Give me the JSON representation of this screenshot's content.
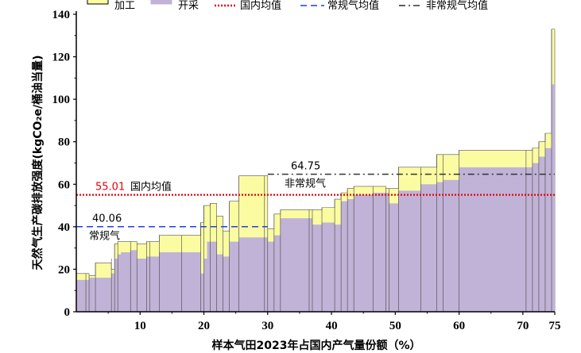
{
  "chart_data": {
    "type": "area",
    "title": "",
    "xlabel": "样本气田2023年占国内产气量份额（%）",
    "ylabel": "天然气生产碳排放强度(kgCO₂e/桶油当量)",
    "xlim": [
      0,
      75
    ],
    "ylim": [
      0,
      140
    ],
    "xticks": [
      10,
      20,
      30,
      40,
      50,
      60,
      70,
      75
    ],
    "yticks": [
      0,
      20,
      40,
      60,
      80,
      100,
      120,
      140
    ],
    "grid": false,
    "legend_position": "top",
    "colors": {
      "processing": "#fbfba2",
      "extraction": "#c1b3d7",
      "national": "#e8000b",
      "conventional": "#1f3fe6",
      "unconventional": "#333333"
    },
    "legend": {
      "processing": "加工",
      "extraction": "开采",
      "national": "国内均值",
      "conventional": "常规气均值",
      "unconventional": "非常规气均值"
    },
    "series": [
      {
        "name": "开采",
        "points": [
          [
            0,
            15
          ],
          [
            2,
            16
          ],
          [
            3,
            16
          ],
          [
            5.5,
            18
          ],
          [
            6,
            25
          ],
          [
            6.5,
            27
          ],
          [
            7,
            28
          ],
          [
            8.5,
            29
          ],
          [
            9.5,
            25
          ],
          [
            11,
            26
          ],
          [
            11.5,
            26
          ],
          [
            13,
            28
          ],
          [
            16.5,
            28
          ],
          [
            18.5,
            28
          ],
          [
            19.5,
            18
          ],
          [
            20,
            25
          ],
          [
            20.5,
            33
          ],
          [
            22,
            27
          ],
          [
            23,
            26
          ],
          [
            24,
            33
          ],
          [
            25.5,
            35
          ],
          [
            29.5,
            35
          ],
          [
            30,
            33
          ],
          [
            31,
            36
          ],
          [
            32,
            44
          ],
          [
            36.5,
            44
          ],
          [
            37,
            41
          ],
          [
            38.5,
            42
          ],
          [
            40.5,
            41
          ],
          [
            41.5,
            52
          ],
          [
            42.5,
            53
          ],
          [
            43.5,
            55
          ],
          [
            46.5,
            56
          ],
          [
            48.5,
            56
          ],
          [
            49,
            51
          ],
          [
            50.5,
            57
          ],
          [
            54,
            60
          ],
          [
            56.5,
            61
          ],
          [
            57.5,
            62
          ],
          [
            60,
            68
          ],
          [
            70.5,
            68
          ],
          [
            71.5,
            70
          ],
          [
            72.5,
            73
          ],
          [
            73.5,
            77
          ],
          [
            74.5,
            107
          ]
        ],
        "end_x": 75
      },
      {
        "name": "加工",
        "points": [
          [
            0,
            18
          ],
          [
            1.5,
            18
          ],
          [
            2,
            17
          ],
          [
            3,
            23
          ],
          [
            5.5,
            20
          ],
          [
            6,
            32
          ],
          [
            6.5,
            33
          ],
          [
            8.5,
            33
          ],
          [
            9.5,
            32
          ],
          [
            11,
            33
          ],
          [
            11.5,
            33
          ],
          [
            13,
            36
          ],
          [
            16.5,
            36
          ],
          [
            19.5,
            42
          ],
          [
            20,
            50
          ],
          [
            21,
            51
          ],
          [
            22,
            45
          ],
          [
            23,
            38
          ],
          [
            24,
            52
          ],
          [
            25.5,
            64
          ],
          [
            29.5,
            64
          ],
          [
            30,
            39
          ],
          [
            31,
            46
          ],
          [
            32,
            48
          ],
          [
            36.5,
            48
          ],
          [
            37,
            48
          ],
          [
            38.5,
            49
          ],
          [
            40.5,
            53
          ],
          [
            41.5,
            56
          ],
          [
            42.5,
            58
          ],
          [
            43.5,
            59
          ],
          [
            46.5,
            59
          ],
          [
            48.5,
            58
          ],
          [
            49,
            58
          ],
          [
            50.5,
            68
          ],
          [
            54,
            68
          ],
          [
            56.5,
            74
          ],
          [
            57.5,
            74
          ],
          [
            60,
            76
          ],
          [
            70.5,
            76
          ],
          [
            71.5,
            77
          ],
          [
            72.5,
            80
          ],
          [
            73.5,
            84
          ],
          [
            74.5,
            133
          ]
        ],
        "end_x": 75
      }
    ],
    "reference_lines": [
      {
        "name": "国内均值",
        "value": 55.01,
        "label": "55.01",
        "text": "国内均值",
        "x_start": 0,
        "x_end": 75
      },
      {
        "name": "常规气均值",
        "value": 40.06,
        "label": "40.06",
        "text": "常规气",
        "x_start": 0,
        "x_end": 30
      },
      {
        "name": "非常规气均值",
        "value": 64.75,
        "label": "64.75",
        "text": "非常规气",
        "x_start": 30,
        "x_end": 75
      }
    ]
  }
}
